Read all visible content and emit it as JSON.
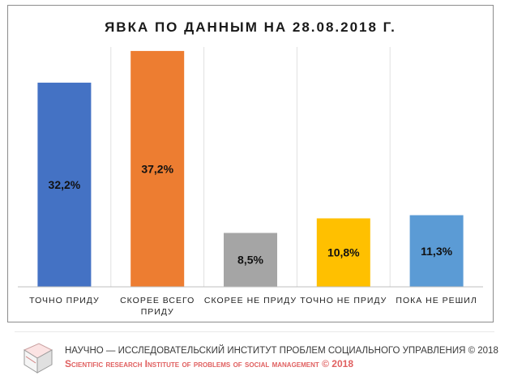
{
  "chart_data": {
    "type": "bar",
    "title": "ЯВКА ПО ДАННЫМ  НА 28.08.2018  Г.",
    "categories": [
      [
        "ТОЧНО ПРИДУ"
      ],
      [
        "СКОРЕЕ ВСЕГО",
        "ПРИДУ"
      ],
      [
        "СКОРЕЕ НЕ ПРИДУ"
      ],
      [
        "ТОЧНО НЕ ПРИДУ"
      ],
      [
        "ПОКА НЕ РЕШИЛ"
      ]
    ],
    "values": [
      32.2,
      37.2,
      8.5,
      10.8,
      11.3
    ],
    "data_labels": [
      "32,2%",
      "37,2%",
      "8,5%",
      "10,8%",
      "11,3%"
    ],
    "colors": [
      "#4472c4",
      "#ed7d31",
      "#a5a5a5",
      "#ffc000",
      "#5b9bd5"
    ],
    "ylim": [
      0,
      40
    ],
    "grid": "vertical separators",
    "xlabel": "",
    "ylabel": ""
  },
  "footer": {
    "line1": "НАУЧНО — ИССЛЕДОВАТЕЛЬСКИЙ ИНСТИТУТ ПРОБЛЕМ СОЦИАЛЬНОГО УПРАВЛЕНИЯ © 2018",
    "line2": "Scientific research Institute of problems of social management © 2018",
    "logo_icon": "cube-logo-icon"
  }
}
